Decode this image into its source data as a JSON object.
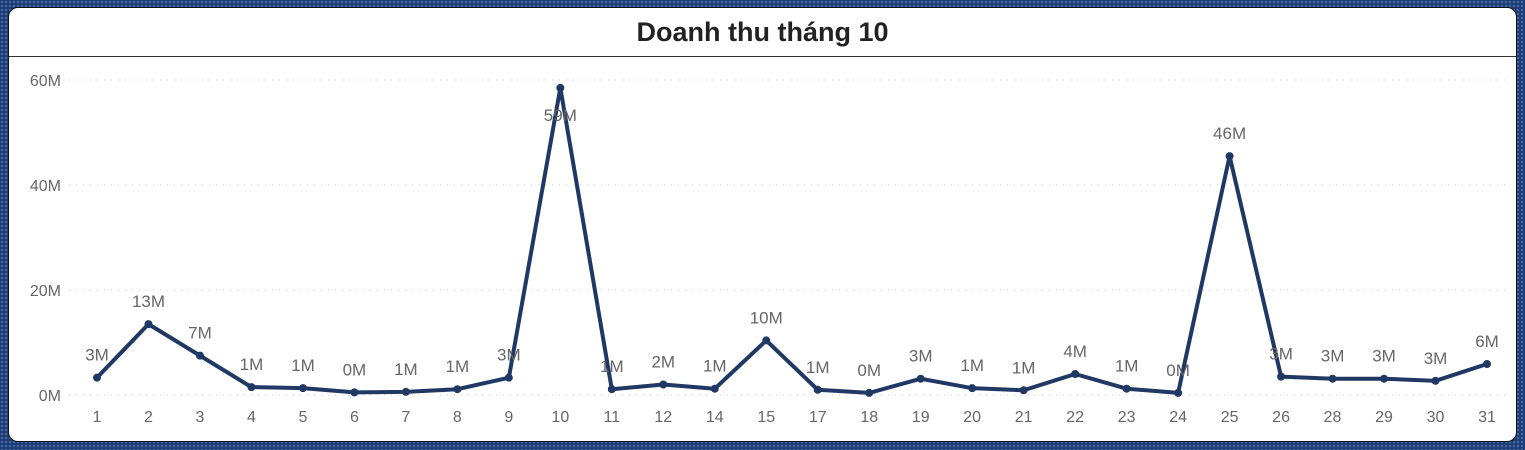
{
  "chart_data": {
    "type": "line",
    "title": "Doanh thu tháng 10",
    "xlabel": "",
    "ylabel": "",
    "ylim": [
      0,
      60000000
    ],
    "y_ticks": [
      {
        "value": 0,
        "label": "0M"
      },
      {
        "value": 20000000,
        "label": "20M"
      },
      {
        "value": 40000000,
        "label": "40M"
      },
      {
        "value": 60000000,
        "label": "60M"
      }
    ],
    "grid": true,
    "line_color": "#1f3864",
    "categories": [
      "1",
      "2",
      "3",
      "4",
      "5",
      "6",
      "7",
      "8",
      "9",
      "10",
      "11",
      "12",
      "14",
      "15",
      "17",
      "18",
      "19",
      "20",
      "21",
      "22",
      "23",
      "24",
      "25",
      "26",
      "28",
      "29",
      "30",
      "31"
    ],
    "values": [
      3300000,
      13500000,
      7500000,
      1500000,
      1300000,
      500000,
      600000,
      1100000,
      3300000,
      58500000,
      1100000,
      2000000,
      1200000,
      10400000,
      1000000,
      400000,
      3100000,
      1300000,
      900000,
      4000000,
      1200000,
      400000,
      45500000,
      3500000,
      3100000,
      3100000,
      2700000,
      5900000
    ],
    "data_labels": [
      "3M",
      "13M",
      "7M",
      "1M",
      "1M",
      "0M",
      "1M",
      "1M",
      "3M",
      "59M",
      "1M",
      "2M",
      "1M",
      "10M",
      "1M",
      "0M",
      "3M",
      "1M",
      "1M",
      "4M",
      "1M",
      "0M",
      "46M",
      "3M",
      "3M",
      "3M",
      "3M",
      "6M"
    ]
  }
}
